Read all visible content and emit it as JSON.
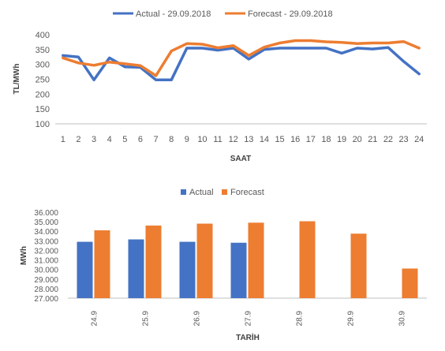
{
  "chart_data": [
    {
      "type": "line",
      "title": "",
      "xlabel": "SAAT",
      "ylabel": "TL/MWh",
      "categories": [
        "1",
        "2",
        "3",
        "4",
        "5",
        "6",
        "7",
        "8",
        "9",
        "10",
        "11",
        "12",
        "13",
        "14",
        "15",
        "16",
        "17",
        "18",
        "19",
        "20",
        "21",
        "22",
        "23",
        "24"
      ],
      "ylim": [
        100,
        400
      ],
      "yticks": [
        "100",
        "150",
        "200",
        "250",
        "300",
        "350",
        "400"
      ],
      "legend_position": "top",
      "grid": false,
      "series": [
        {
          "name": "Actual - 29.09.2018",
          "color": "#4472c4",
          "values": [
            330,
            325,
            248,
            322,
            292,
            290,
            248,
            248,
            355,
            355,
            348,
            355,
            318,
            350,
            355,
            355,
            355,
            355,
            338,
            355,
            352,
            357,
            310,
            268
          ]
        },
        {
          "name": "Forecast - 29.09.2018",
          "color": "#ed7d31",
          "values": [
            322,
            305,
            297,
            308,
            302,
            296,
            262,
            345,
            370,
            368,
            356,
            363,
            330,
            358,
            372,
            380,
            380,
            376,
            374,
            370,
            372,
            372,
            377,
            355
          ]
        }
      ]
    },
    {
      "type": "bar",
      "title": "",
      "xlabel": "TARİH",
      "ylabel": "MWh",
      "categories": [
        "24.9",
        "25.9",
        "26.9",
        "27.9",
        "28.9",
        "29.9",
        "30.9"
      ],
      "ylim": [
        27000,
        36000
      ],
      "yticks": [
        "27.000",
        "28.000",
        "29.000",
        "30.000",
        "31.000",
        "32.000",
        "33.000",
        "34.000",
        "35.000",
        "36.000"
      ],
      "legend_position": "top",
      "grid": false,
      "series": [
        {
          "name": "Actual",
          "color": "#4472c4",
          "values": [
            32900,
            33150,
            32900,
            32800,
            null,
            null,
            null
          ]
        },
        {
          "name": "Forecast",
          "color": "#ed7d31",
          "values": [
            34100,
            34600,
            34800,
            34900,
            35050,
            33750,
            30100
          ]
        }
      ]
    }
  ]
}
